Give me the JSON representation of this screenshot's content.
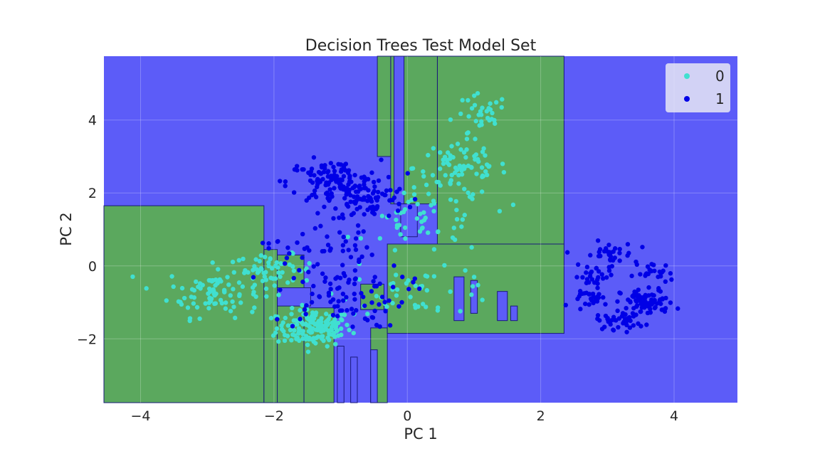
{
  "chart_data": {
    "type": "scatter",
    "title": "Decision Trees Test Model Set",
    "xlabel": "PC 1",
    "ylabel": "PC 2",
    "xlim": [
      -4.55,
      4.95
    ],
    "ylim": [
      -3.75,
      5.75
    ],
    "xticks": [
      -4,
      -2,
      0,
      2,
      4
    ],
    "yticks": [
      -2,
      0,
      2,
      4
    ],
    "xtick_labels": [
      "−4",
      "−2",
      "0",
      "2",
      "4"
    ],
    "ytick_labels": [
      "−2",
      "0",
      "2",
      "4"
    ],
    "grid": true,
    "legend_position": "top-right",
    "region_colors": {
      "0": "#5ba85e",
      "1": "#5c5cf8"
    },
    "series": [
      {
        "name": "0",
        "color": "#40e0d0",
        "clusters": [
          {
            "cx": -1.4,
            "cy": -1.7,
            "sx": 0.28,
            "sy": 0.25,
            "n": 160
          },
          {
            "cx": -2.9,
            "cy": -0.7,
            "sx": 0.35,
            "sy": 0.35,
            "n": 90
          },
          {
            "cx": -2.0,
            "cy": -0.1,
            "sx": 0.3,
            "sy": 0.2,
            "n": 50
          },
          {
            "cx": 0.8,
            "cy": 2.7,
            "sx": 0.35,
            "sy": 0.4,
            "n": 80
          },
          {
            "cx": 1.1,
            "cy": 4.1,
            "sx": 0.2,
            "sy": 0.3,
            "n": 30
          },
          {
            "cx": 0.3,
            "cy": 1.2,
            "sx": 0.45,
            "sy": 0.45,
            "n": 55
          },
          {
            "cx": 0.2,
            "cy": -0.7,
            "sx": 0.6,
            "sy": 0.3,
            "n": 45
          }
        ]
      },
      {
        "name": "1",
        "color": "#0000e6",
        "clusters": [
          {
            "cx": -1.1,
            "cy": 2.3,
            "sx": 0.35,
            "sy": 0.3,
            "n": 130
          },
          {
            "cx": -0.6,
            "cy": 1.8,
            "sx": 0.3,
            "sy": 0.3,
            "n": 70
          },
          {
            "cx": -1.0,
            "cy": -0.8,
            "sx": 0.5,
            "sy": 0.45,
            "n": 90
          },
          {
            "cx": -1.3,
            "cy": 0.5,
            "sx": 0.4,
            "sy": 0.3,
            "n": 40
          },
          {
            "cx": 3.6,
            "cy": -1.0,
            "sx": 0.2,
            "sy": 0.18,
            "n": 80
          },
          {
            "cx": 3.2,
            "cy": -1.5,
            "sx": 0.18,
            "sy": 0.12,
            "n": 40
          },
          {
            "cx": 3.0,
            "cy": 0.3,
            "sx": 0.2,
            "sy": 0.18,
            "n": 35
          },
          {
            "cx": 2.8,
            "cy": -0.3,
            "sx": 0.15,
            "sy": 0.15,
            "n": 25
          },
          {
            "cx": 3.7,
            "cy": -0.2,
            "sx": 0.15,
            "sy": 0.15,
            "n": 25
          },
          {
            "cx": 2.8,
            "cy": -0.9,
            "sx": 0.15,
            "sy": 0.1,
            "n": 25
          }
        ]
      }
    ],
    "decision_regions_class0": [
      [
        -4.55,
        -3.75,
        -2.15,
        1.65
      ],
      [
        -2.15,
        -3.75,
        -1.95,
        0.45
      ],
      [
        -1.95,
        -3.75,
        -1.55,
        0.3
      ],
      [
        -1.55,
        -3.75,
        -1.1,
        -1.15
      ],
      [
        -0.55,
        -3.75,
        -0.3,
        -1.7
      ],
      [
        -0.3,
        -1.85,
        2.35,
        0.6
      ],
      [
        0.45,
        0.6,
        2.35,
        5.75
      ],
      [
        -0.25,
        1.7,
        0.45,
        5.75
      ],
      [
        -0.45,
        3.0,
        -0.25,
        5.75
      ],
      [
        -0.7,
        -1.2,
        -0.35,
        -0.5
      ]
    ],
    "decision_regions_class1": [
      [
        -1.95,
        -1.1,
        -1.45,
        -0.6
      ],
      [
        -1.05,
        -3.75,
        -0.95,
        -2.2
      ],
      [
        -0.85,
        -3.75,
        -0.75,
        -2.5
      ],
      [
        -0.55,
        -3.75,
        -0.45,
        -2.3
      ],
      [
        1.35,
        -1.5,
        1.5,
        -0.7
      ],
      [
        1.55,
        -1.5,
        1.65,
        -1.1
      ],
      [
        0.7,
        -1.5,
        0.85,
        -0.3
      ],
      [
        0.95,
        -1.3,
        1.05,
        -0.4
      ],
      [
        -0.2,
        1.7,
        -0.05,
        5.75
      ],
      [
        -0.1,
        0.8,
        0.15,
        1.7
      ]
    ]
  }
}
